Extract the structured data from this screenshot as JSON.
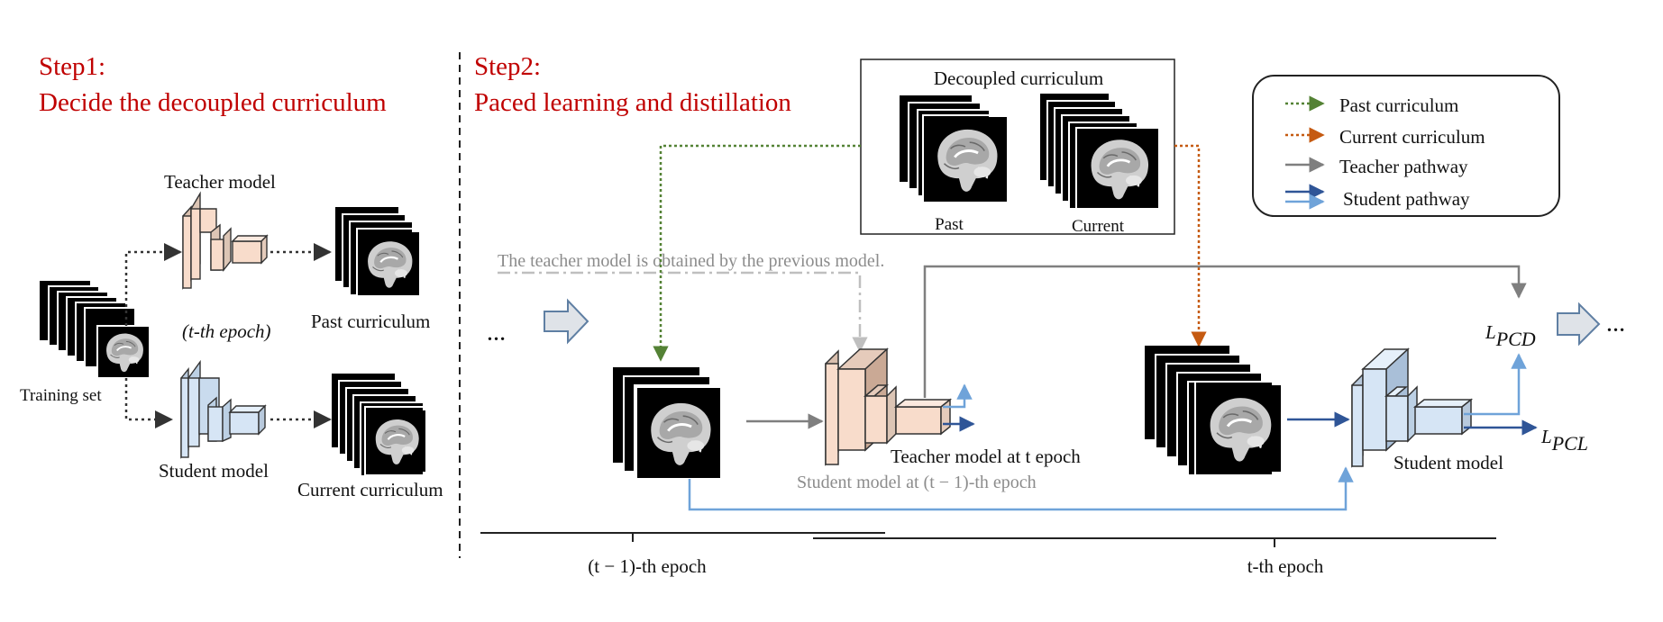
{
  "step1": {
    "title": "Step1:",
    "subtitle": "Decide the decoupled curriculum",
    "teacher_label": "Teacher model",
    "epoch_note": "(t-th epoch)",
    "past_label": "Past curriculum",
    "training_label": "Training  set",
    "student_label": "Student model",
    "current_label": "Current curriculum"
  },
  "step2": {
    "title": "Step2:",
    "subtitle": "Paced learning and distillation",
    "decoupled_title": "Decoupled curriculum",
    "past_small": "Past",
    "current_small": "Current",
    "teacher_note": "The teacher model is obtained by the previous model.",
    "dots_left": "…",
    "dots_right": "…",
    "teacher_at_t": "Teacher model at t epoch",
    "student_prev": "Student model at (t − 1)-th epoch",
    "student_model": "Student model",
    "loss_pcd": "L",
    "loss_pcd_sub": "PCD",
    "loss_pcl": "L",
    "loss_pcl_sub": "PCL",
    "epoch_prev": "(t − 1)-th epoch",
    "epoch_t": "t-th epoch"
  },
  "legend": {
    "items": [
      {
        "label": "Past curriculum",
        "color": "#548235",
        "style": "dotted"
      },
      {
        "label": "Current curriculum",
        "color": "#c55a11",
        "style": "dotted"
      },
      {
        "label": "Teacher pathway",
        "color": "#7f7f7f",
        "style": "solid"
      },
      {
        "label": "Student pathway",
        "color": "#2f5597",
        "style": "double"
      }
    ]
  },
  "colors": {
    "teacher_fill": "#f8dccb",
    "student_fill": "#d6e5f5",
    "past_arrow": "#548235",
    "current_arrow": "#c55a11",
    "teacher_path": "#7f7f7f",
    "student_dark": "#2f5597",
    "student_light": "#6fa3d9"
  }
}
